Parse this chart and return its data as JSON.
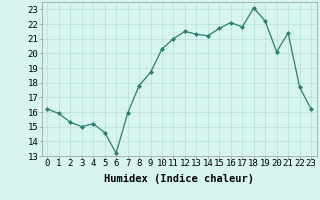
{
  "x": [
    0,
    1,
    2,
    3,
    4,
    5,
    6,
    7,
    8,
    9,
    10,
    11,
    12,
    13,
    14,
    15,
    16,
    17,
    18,
    19,
    20,
    21,
    22,
    23
  ],
  "y": [
    16.2,
    15.9,
    15.3,
    15.0,
    15.2,
    14.6,
    13.2,
    15.9,
    17.8,
    18.7,
    20.3,
    21.0,
    21.5,
    21.3,
    21.2,
    21.7,
    22.1,
    21.8,
    23.1,
    22.2,
    20.1,
    21.4,
    17.7,
    16.2
  ],
  "line_color": "#2e7d6e",
  "marker": "D",
  "marker_size": 2,
  "bg_color": "#d6f5f0",
  "grid_color": "#b8ddd8",
  "xlabel": "Humidex (Indice chaleur)",
  "ylabel": "",
  "xlim": [
    -0.5,
    23.5
  ],
  "ylim": [
    13,
    23.5
  ],
  "xticks": [
    0,
    1,
    2,
    3,
    4,
    5,
    6,
    7,
    8,
    9,
    10,
    11,
    12,
    13,
    14,
    15,
    16,
    17,
    18,
    19,
    20,
    21,
    22,
    23
  ],
  "yticks": [
    13,
    14,
    15,
    16,
    17,
    18,
    19,
    20,
    21,
    22,
    23
  ],
  "tick_fontsize": 6.5,
  "xlabel_fontsize": 7.5
}
